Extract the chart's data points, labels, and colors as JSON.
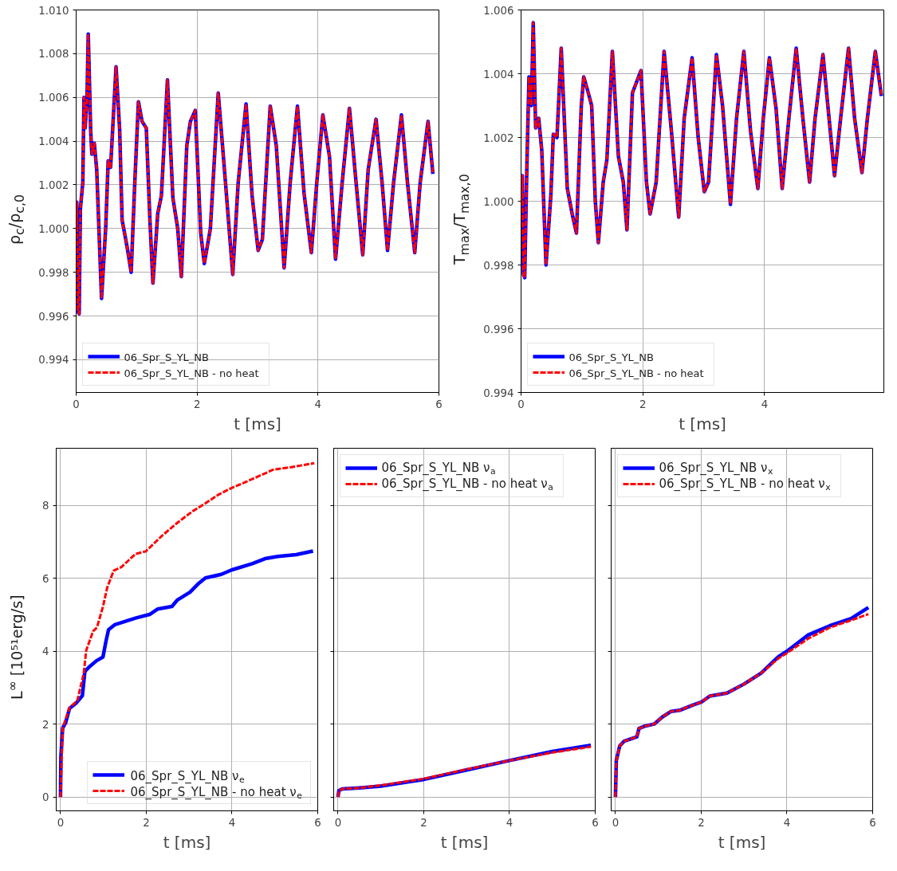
{
  "chart_data": [
    {
      "type": "line",
      "ylabel": "ρ$_{c}$/ρ$_{c,0}$",
      "xlabel": "t [ms]",
      "xlim": [
        0,
        6
      ],
      "ylim": [
        0.9925,
        1.01
      ],
      "xticks": [
        0,
        2,
        4,
        6
      ],
      "yticks": [
        {
          "value": 0.994,
          "label": "0.994"
        },
        {
          "value": 0.996,
          "label": "0.996"
        },
        {
          "value": 0.998,
          "label": "0.998"
        },
        {
          "value": 1.0,
          "label": "1.000"
        },
        {
          "value": 1.002,
          "label": "1.002"
        },
        {
          "value": 1.004,
          "label": "1.004"
        },
        {
          "value": 1.006,
          "label": "1.006"
        },
        {
          "value": 1.008,
          "label": "1.008"
        },
        {
          "value": 1.01,
          "label": "1.010"
        }
      ],
      "grid": true,
      "legend": "bottom left",
      "x": [
        0.0,
        0.01,
        0.03,
        0.05,
        0.07,
        0.11,
        0.13,
        0.15,
        0.18,
        0.2,
        0.24,
        0.26,
        0.3,
        0.34,
        0.42,
        0.49,
        0.53,
        0.57,
        0.66,
        0.72,
        0.76,
        0.84,
        0.91,
        0.97,
        1.03,
        1.09,
        1.16,
        1.22,
        1.27,
        1.35,
        1.41,
        1.51,
        1.6,
        1.68,
        1.74,
        1.83,
        1.89,
        1.97,
        2.06,
        2.12,
        2.22,
        2.35,
        2.47,
        2.59,
        2.68,
        2.81,
        2.91,
        3.01,
        3.08,
        3.21,
        3.31,
        3.44,
        3.54,
        3.66,
        3.77,
        3.89,
        3.98,
        4.08,
        4.19,
        4.29,
        4.4,
        4.52,
        4.63,
        4.74,
        4.83,
        4.96,
        5.06,
        5.15,
        5.25,
        5.38,
        5.48,
        5.6,
        5.69,
        5.82,
        5.9
      ],
      "series": [
        {
          "name": "06_Spr_S_YL_NB",
          "color": "#0000ff",
          "line_style": "solid",
          "values": [
            1.0,
            1.0012,
            0.9962,
            0.9961,
            1.0009,
            1.0021,
            1.006,
            1.0046,
            1.006,
            1.0089,
            1.0045,
            1.0034,
            1.0039,
            1.0027,
            0.9968,
            1.0001,
            1.0031,
            1.0028,
            1.0074,
            1.0045,
            1.0004,
            0.9992,
            0.998,
            1.0021,
            1.0058,
            1.0049,
            1.0046,
            1.0004,
            0.9975,
            1.0007,
            1.0015,
            1.0068,
            1.0014,
            1.0,
            0.9978,
            1.0038,
            1.0049,
            1.0054,
            0.9998,
            0.9984,
            1.0,
            1.0062,
            1.0021,
            0.9979,
            1.0021,
            1.0057,
            1.0015,
            0.999,
            0.9995,
            1.0056,
            1.0038,
            0.9982,
            1.0021,
            1.0056,
            1.0016,
            0.9989,
            1.0021,
            1.0052,
            1.0033,
            0.9986,
            1.0021,
            1.0055,
            1.0021,
            0.9988,
            1.0027,
            1.005,
            1.0021,
            0.999,
            1.0021,
            1.0052,
            1.0021,
            0.9989,
            1.0021,
            1.0049,
            1.0025
          ]
        },
        {
          "name": "06_Spr_S_YL_NB - no heat",
          "color": "#ff0000",
          "line_style": "dashed",
          "values": [
            1.0,
            1.0012,
            0.9962,
            0.9961,
            1.0009,
            1.0021,
            1.006,
            1.0046,
            1.006,
            1.0089,
            1.0045,
            1.0034,
            1.0039,
            1.0027,
            0.9968,
            1.0001,
            1.0031,
            1.0028,
            1.0074,
            1.0045,
            1.0004,
            0.9992,
            0.998,
            1.0021,
            1.0058,
            1.0049,
            1.0046,
            1.0004,
            0.9975,
            1.0007,
            1.0015,
            1.0068,
            1.0014,
            1.0,
            0.9978,
            1.0038,
            1.0049,
            1.0054,
            0.9998,
            0.9984,
            1.0,
            1.0062,
            1.0021,
            0.9979,
            1.0021,
            1.0057,
            1.0015,
            0.999,
            0.9995,
            1.0056,
            1.0038,
            0.9982,
            1.0021,
            1.0056,
            1.0016,
            0.9989,
            1.0021,
            1.0052,
            1.0033,
            0.9986,
            1.0021,
            1.0055,
            1.0021,
            0.9988,
            1.0027,
            1.005,
            1.0021,
            0.999,
            1.0021,
            1.0052,
            1.0021,
            0.9989,
            1.0021,
            1.0049,
            1.0025
          ]
        }
      ]
    },
    {
      "type": "line",
      "ylabel": "T$_{max}$/T$_{max,0}$",
      "xlabel": "t [ms]",
      "xlim": [
        0,
        5.96
      ],
      "ylim": [
        0.994,
        1.006
      ],
      "xticks": [
        0,
        2,
        4
      ],
      "yticks": [
        {
          "value": 0.994,
          "label": "0.994"
        },
        {
          "value": 0.996,
          "label": "0.996"
        },
        {
          "value": 0.998,
          "label": "0.998"
        },
        {
          "value": 1.0,
          "label": "1.000"
        },
        {
          "value": 1.002,
          "label": "1.002"
        },
        {
          "value": 1.004,
          "label": "1.004"
        },
        {
          "value": 1.006,
          "label": "1.006"
        }
      ],
      "grid": true,
      "legend": "bottom left",
      "x": [
        0.0,
        0.02,
        0.04,
        0.06,
        0.09,
        0.13,
        0.17,
        0.2,
        0.24,
        0.29,
        0.34,
        0.41,
        0.49,
        0.53,
        0.59,
        0.66,
        0.76,
        0.84,
        0.91,
        0.99,
        1.03,
        1.09,
        1.16,
        1.22,
        1.27,
        1.35,
        1.41,
        1.5,
        1.6,
        1.68,
        1.74,
        1.83,
        1.91,
        1.97,
        2.06,
        2.12,
        2.22,
        2.35,
        2.47,
        2.59,
        2.68,
        2.81,
        2.91,
        3.01,
        3.08,
        3.21,
        3.31,
        3.44,
        3.54,
        3.66,
        3.77,
        3.89,
        3.98,
        4.08,
        4.19,
        4.29,
        4.4,
        4.52,
        4.63,
        4.74,
        4.83,
        4.96,
        5.06,
        5.15,
        5.25,
        5.38,
        5.48,
        5.6,
        5.69,
        5.82,
        5.92
      ],
      "series": [
        {
          "name": "06_Spr_S_YL_NB",
          "color": "#0000ff",
          "line_style": "solid",
          "values": [
            1.0,
            1.0008,
            0.9977,
            0.9976,
            1.0006,
            1.0039,
            1.003,
            1.0056,
            1.0023,
            1.0026,
            1.0016,
            0.998,
            1.0002,
            1.0021,
            1.002,
            1.0048,
            1.0004,
            0.9996,
            0.999,
            1.003,
            1.0039,
            1.0035,
            1.003,
            1.0,
            0.9987,
            1.0006,
            1.0013,
            1.0047,
            1.0014,
            1.0006,
            0.9991,
            1.0034,
            1.0038,
            1.0041,
            1.0006,
            0.9996,
            1.0006,
            1.0047,
            1.0022,
            0.9995,
            1.0026,
            1.0045,
            1.002,
            1.0003,
            1.0006,
            1.0046,
            1.003,
            0.9999,
            1.0026,
            1.0047,
            1.0022,
            1.0004,
            1.0026,
            1.0045,
            1.0029,
            1.0004,
            1.0026,
            1.0048,
            1.0026,
            1.0006,
            1.0026,
            1.0046,
            1.0026,
            1.0008,
            1.0026,
            1.0048,
            1.0026,
            1.0009,
            1.0026,
            1.0047,
            1.0033
          ]
        },
        {
          "name": "06_Spr_S_YL_NB - no heat",
          "color": "#ff0000",
          "line_style": "dashed",
          "values": [
            1.0,
            1.0008,
            0.9977,
            0.9976,
            1.0006,
            1.0039,
            1.003,
            1.0056,
            1.0023,
            1.0026,
            1.0016,
            0.998,
            1.0002,
            1.0021,
            1.002,
            1.0048,
            1.0004,
            0.9996,
            0.999,
            1.003,
            1.0039,
            1.0035,
            1.003,
            1.0,
            0.9987,
            1.0006,
            1.0013,
            1.0047,
            1.0014,
            1.0006,
            0.9991,
            1.0034,
            1.0038,
            1.0041,
            1.0006,
            0.9996,
            1.0006,
            1.0047,
            1.0022,
            0.9995,
            1.0026,
            1.0045,
            1.002,
            1.0003,
            1.0006,
            1.0046,
            1.003,
            0.9999,
            1.0026,
            1.0047,
            1.0022,
            1.0004,
            1.0026,
            1.0045,
            1.0029,
            1.0004,
            1.0026,
            1.0048,
            1.0026,
            1.0006,
            1.0026,
            1.0046,
            1.0026,
            1.0008,
            1.0026,
            1.0048,
            1.0026,
            1.0009,
            1.0026,
            1.0047,
            1.0033
          ]
        }
      ]
    },
    {
      "type": "line",
      "ylabel": "L$^{∞}$ [10⁵¹erg/s]",
      "xlabel": "t [ms]",
      "xlim": [
        -0.1,
        6
      ],
      "ylim": [
        -0.38,
        9.57
      ],
      "xticks": [
        0,
        2,
        4,
        6
      ],
      "yticks": [
        0,
        2,
        4,
        6,
        8
      ],
      "grid": true,
      "legend": "bottom right",
      "series": [
        {
          "name": "06_Spr_S_YL_NB ν$_{e}$",
          "color": "#0000ff",
          "line_style": "solid",
          "x": [
            0,
            0.01,
            0.05,
            0.12,
            0.21,
            0.36,
            0.51,
            0.57,
            0.69,
            0.84,
            0.99,
            1.06,
            1.12,
            1.27,
            1.75,
            2.08,
            2.27,
            2.6,
            2.72,
            3.02,
            3.23,
            3.38,
            3.75,
            3.99,
            4.47,
            4.77,
            5.07,
            5.5,
            5.89
          ],
          "values": [
            0,
            1.11,
            1.89,
            2.04,
            2.43,
            2.57,
            2.78,
            3.45,
            3.59,
            3.74,
            3.84,
            4.27,
            4.59,
            4.73,
            4.91,
            5.01,
            5.16,
            5.23,
            5.4,
            5.62,
            5.87,
            6.01,
            6.11,
            6.23,
            6.4,
            6.54,
            6.6,
            6.65,
            6.75
          ]
        },
        {
          "name": "06_Spr_S_YL_NB - no heat ν$_{e}$",
          "color": "#ff0000",
          "line_style": "dashed",
          "x": [
            0,
            0.05,
            0.21,
            0.39,
            0.54,
            0.6,
            0.76,
            0.85,
            0.99,
            1.09,
            1.24,
            1.42,
            1.75,
            1.99,
            2.36,
            2.72,
            3.08,
            3.38,
            3.69,
            3.99,
            4.35,
            4.96,
            5.38,
            5.92
          ],
          "values": [
            0,
            1.89,
            2.45,
            2.64,
            3.38,
            4.02,
            4.55,
            4.65,
            5.22,
            5.75,
            6.21,
            6.31,
            6.67,
            6.74,
            7.16,
            7.52,
            7.84,
            8.06,
            8.3,
            8.48,
            8.66,
            8.98,
            9.05,
            9.16
          ]
        }
      ]
    },
    {
      "type": "line",
      "xlabel": "t [ms]",
      "xlim": [
        -0.1,
        6
      ],
      "ylim": [
        -0.38,
        9.57
      ],
      "xticks": [
        0,
        2,
        4,
        6
      ],
      "yticks": [
        0,
        2,
        4,
        6,
        8
      ],
      "tick_labels": "x",
      "grid": true,
      "legend": "top left",
      "x": [
        0,
        0.02,
        0.1,
        0.5,
        1,
        2,
        3,
        4,
        5,
        5.9
      ],
      "series": [
        {
          "name": "06_Spr_S_YL_NB ν$_{a}$",
          "color": "#0000ff",
          "line_style": "solid",
          "values": [
            0,
            0.17,
            0.22,
            0.25,
            0.3,
            0.48,
            0.74,
            1.0,
            1.25,
            1.42
          ]
        },
        {
          "name": "06_Spr_S_YL_NB - no heat ν$_{a}$",
          "color": "#ff0000",
          "line_style": "dashed",
          "values": [
            0,
            0.17,
            0.22,
            0.25,
            0.32,
            0.5,
            0.76,
            1.0,
            1.22,
            1.38
          ]
        }
      ]
    },
    {
      "type": "line",
      "xlabel": "t [ms]",
      "xlim": [
        -0.1,
        6
      ],
      "ylim": [
        -0.38,
        9.57
      ],
      "xticks": [
        0,
        2,
        4,
        6
      ],
      "yticks": [
        0,
        2,
        4,
        6,
        8
      ],
      "tick_labels": "x",
      "grid": true,
      "legend": "top left",
      "x": [
        0,
        0.02,
        0.1,
        0.2,
        0.5,
        0.55,
        0.7,
        0.9,
        1.1,
        1.3,
        1.5,
        1.8,
        2.0,
        2.2,
        2.6,
        3.0,
        3.4,
        3.8,
        4.0,
        4.5,
        5.0,
        5.5,
        5.9
      ],
      "series": [
        {
          "name": "06_Spr_S_YL_NB ν$_{x}$",
          "color": "#0000ff",
          "line_style": "solid",
          "values": [
            0,
            1.0,
            1.4,
            1.53,
            1.65,
            1.88,
            1.95,
            2.0,
            2.2,
            2.35,
            2.38,
            2.52,
            2.6,
            2.77,
            2.85,
            3.1,
            3.4,
            3.85,
            4.0,
            4.45,
            4.7,
            4.9,
            5.2
          ]
        },
        {
          "name": "06_Spr_S_YL_NB - no heat ν$_{x}$",
          "color": "#ff0000",
          "line_style": "dashed",
          "values": [
            0,
            1.0,
            1.4,
            1.53,
            1.65,
            1.88,
            1.95,
            2.0,
            2.2,
            2.35,
            2.38,
            2.52,
            2.6,
            2.77,
            2.85,
            3.1,
            3.4,
            3.8,
            3.95,
            4.35,
            4.65,
            4.85,
            5.02
          ]
        }
      ]
    }
  ]
}
